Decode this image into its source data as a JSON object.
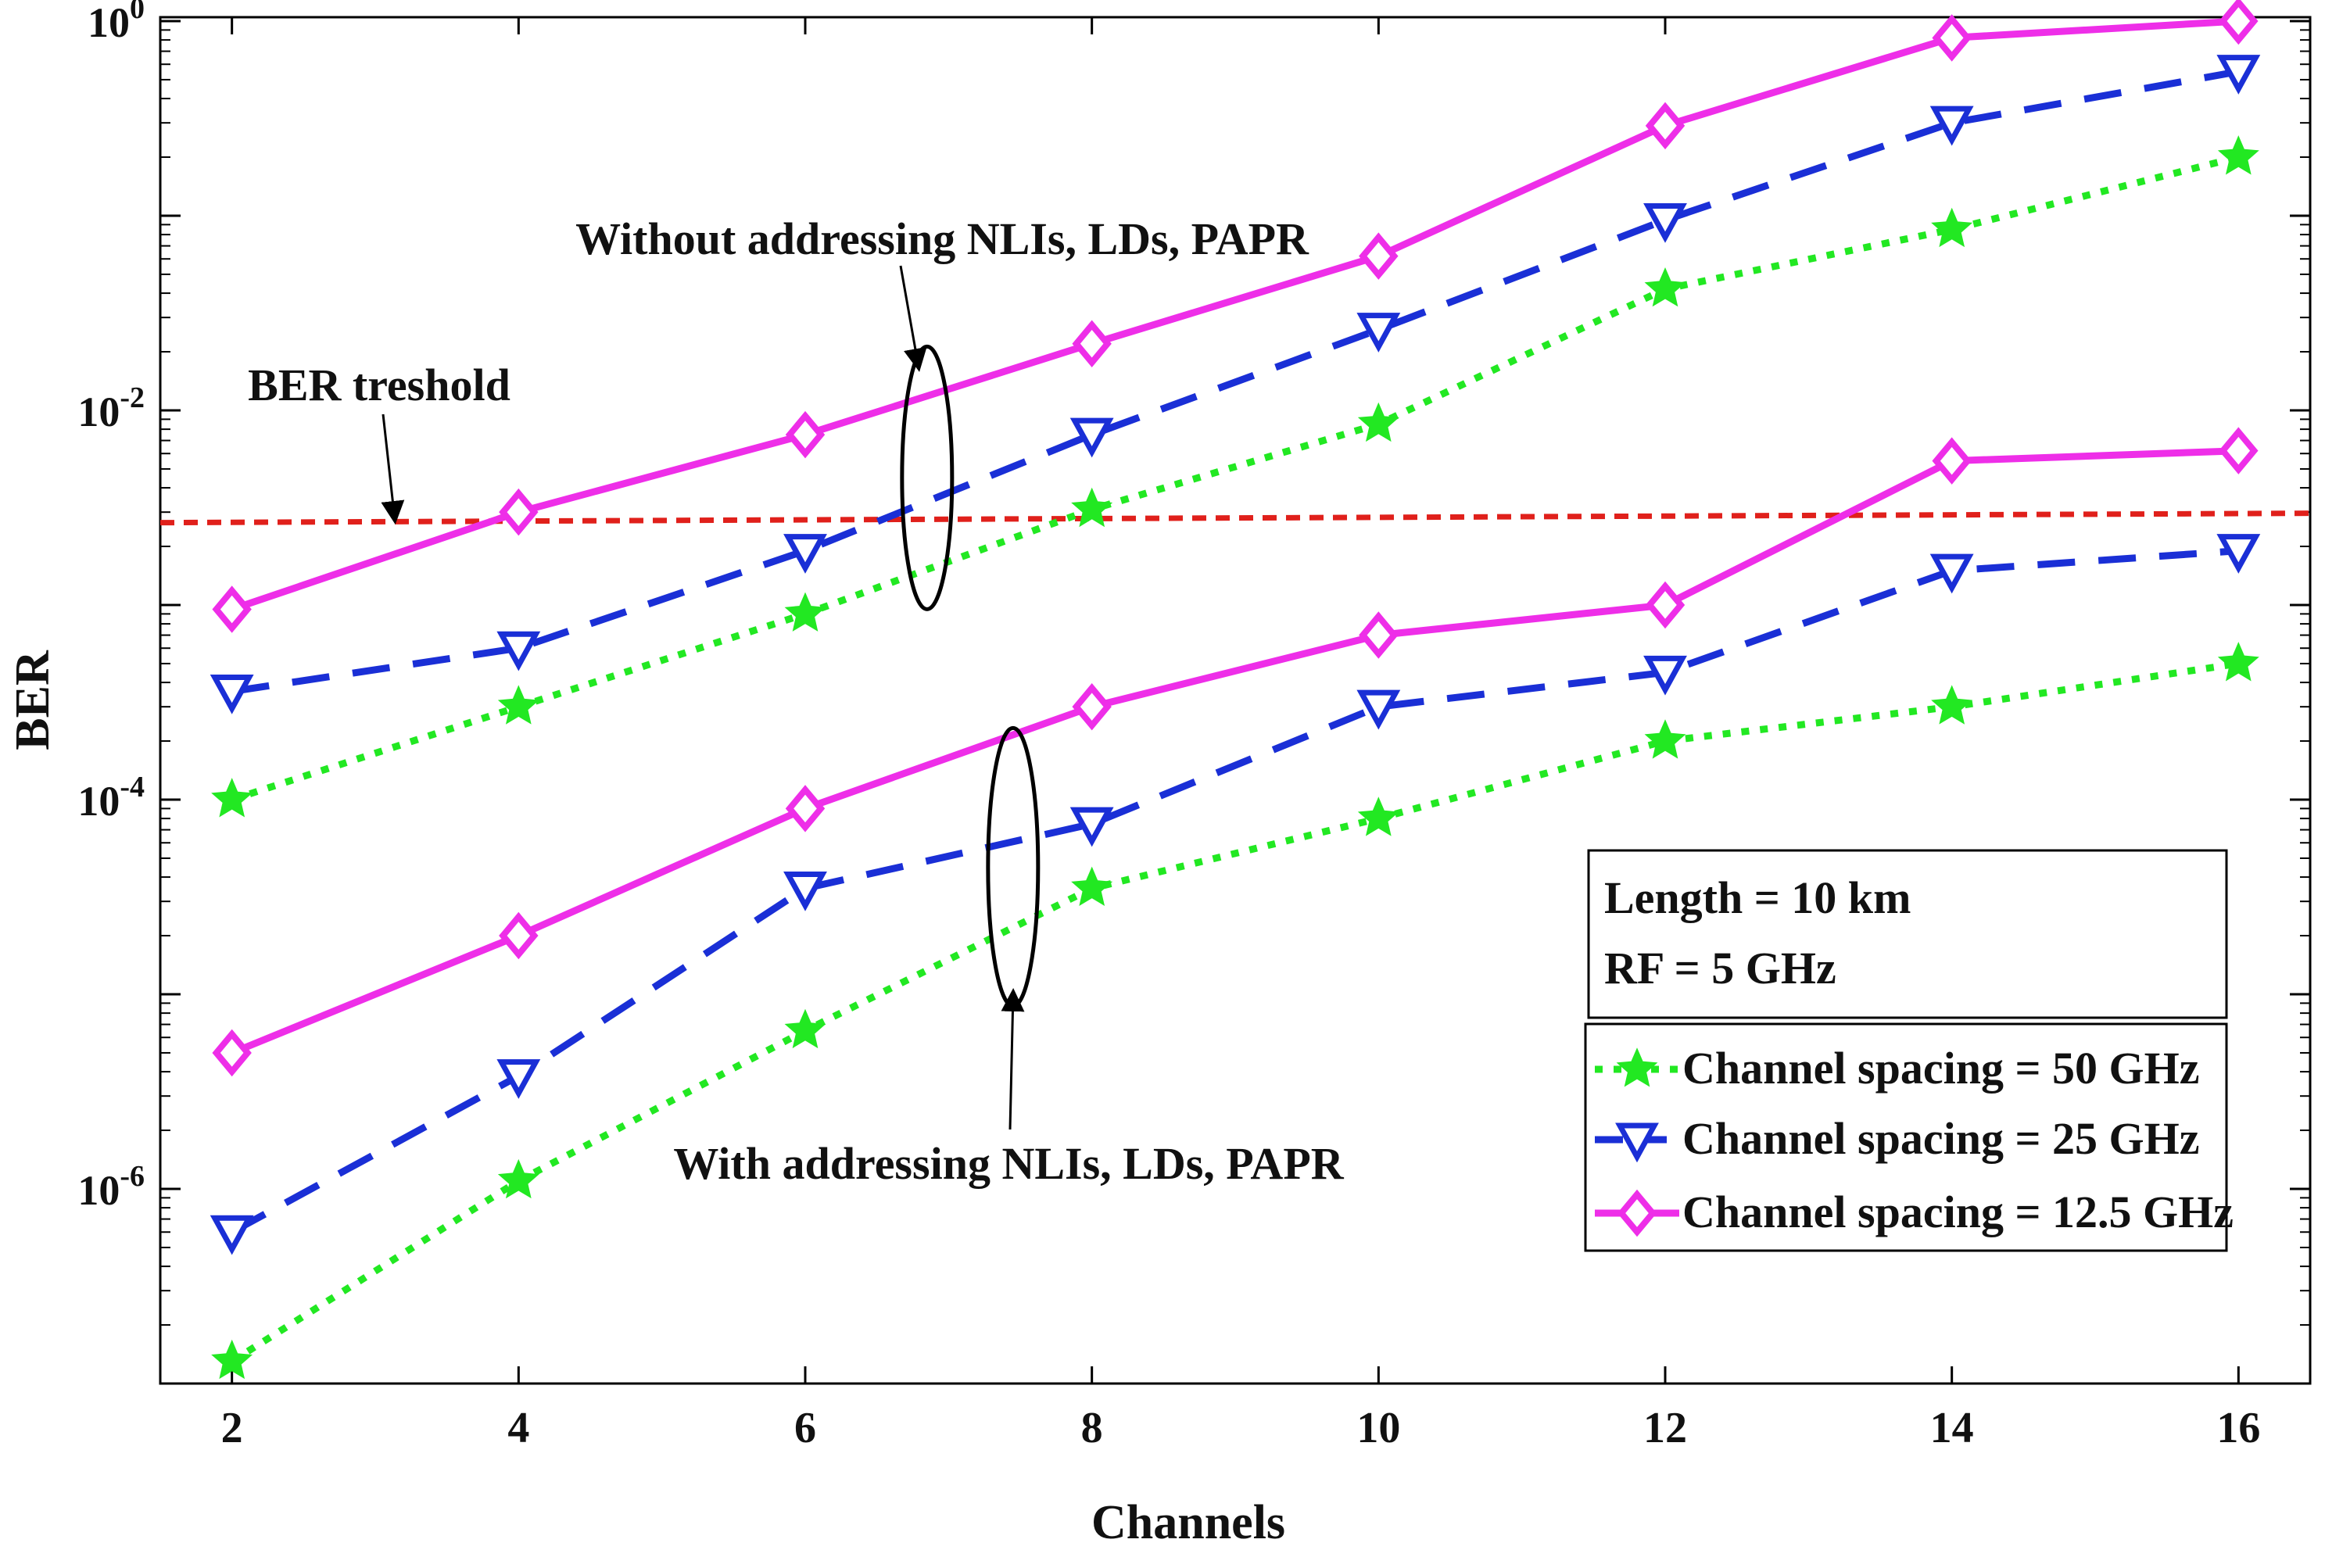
{
  "chart_data": {
    "type": "line",
    "xlabel": "Channels",
    "ylabel": "BER",
    "x": [
      2,
      4,
      6,
      8,
      10,
      12,
      14,
      16
    ],
    "xlim": [
      1.5,
      16.5
    ],
    "ylim_log10": [
      -7,
      0.02
    ],
    "x_ticks": [
      "2",
      "4",
      "6",
      "8",
      "10",
      "12",
      "14",
      "16"
    ],
    "y_ticks": [
      {
        "exp": 0,
        "base": "10",
        "sup": "0"
      },
      {
        "exp": -2,
        "base": "10",
        "sup": "-2"
      },
      {
        "exp": -4,
        "base": "10",
        "sup": "-4"
      },
      {
        "exp": -6,
        "base": "10",
        "sup": "-6"
      }
    ],
    "threshold": {
      "label": "BER treshold",
      "value": 0.0028,
      "color": "#e0201b"
    },
    "series": [
      {
        "name": "Channel spacing = 50 GHz",
        "group": "without",
        "marker": "star",
        "color": "#22e822",
        "dash": "dotted",
        "values": [
          0.0001,
          0.0003,
          0.0009,
          0.0031,
          0.0085,
          0.042,
          0.085,
          0.2
        ]
      },
      {
        "name": "Channel spacing = 25 GHz",
        "group": "without",
        "marker": "triangle-down",
        "color": "#1a2fd6",
        "dash": "dashed",
        "values": [
          0.00036,
          0.0006,
          0.0019,
          0.0075,
          0.026,
          0.095,
          0.3,
          0.55
        ]
      },
      {
        "name": "Channel spacing = 12.5 GHz",
        "group": "without",
        "marker": "diamond",
        "color": "#ee2ee8",
        "dash": "solid",
        "values": [
          0.00095,
          0.003,
          0.0075,
          0.022,
          0.062,
          0.29,
          0.82,
          1.0
        ]
      },
      {
        "name": "Channel spacing = 50 GHz",
        "group": "with",
        "marker": "star",
        "color": "#22e822",
        "dash": "dotted",
        "values": 1.3e-07
      },
      {
        "name": "Channel spacing = 25 GHz",
        "group": "with",
        "marker": "triangle-down",
        "color": "#1a2fd6",
        "dash": "dashed",
        "values": 6e-07
      },
      {
        "name": "Channel spacing = 12.5 GHz",
        "group": "with",
        "marker": "diamond",
        "color": "#ee2ee8",
        "dash": "solid",
        "values": 5e-06
      }
    ],
    "annotations": {
      "without": "Without addressing NLIs, LDs, PAPR",
      "with": "With addressing NLIs, LDs, PAPR"
    },
    "info_box": [
      "Length = 10 km",
      "RF = 5 GHz"
    ],
    "legend": [
      "Channel spacing = 50 GHz",
      "Channel spacing = 25 GHz",
      "Channel spacing = 12.5 GHz"
    ]
  }
}
